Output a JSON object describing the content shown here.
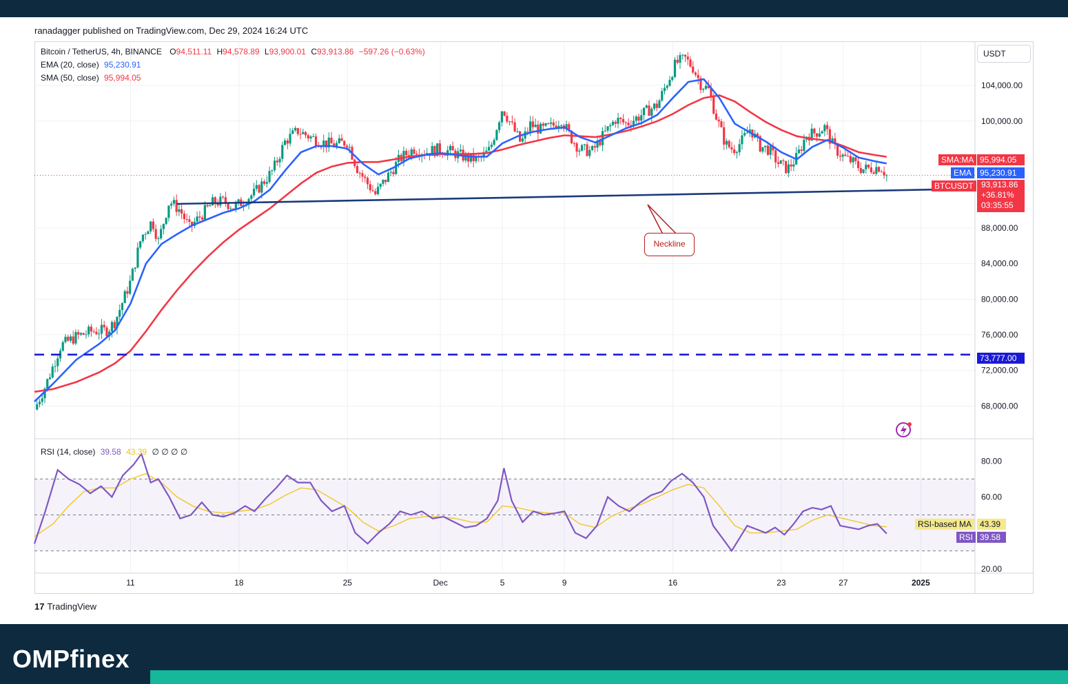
{
  "header": {
    "published": "ranadagger published on TradingView.com, Dec 29, 2024 16:24 UTC",
    "currency_button": "USDT"
  },
  "legend": {
    "symbol": "Bitcoin / TetherUS, 4h, BINANCE",
    "open_label": "O",
    "open": "94,511.11",
    "high_label": "H",
    "high": "94,578.89",
    "low_label": "L",
    "low": "93,900.01",
    "close_label": "C",
    "close": "93,913.86",
    "change": "−597.26 (−0.63%)",
    "ema_label": "EMA (20, close)",
    "ema_value": "95,230.91",
    "sma_label": "SMA (50, close)",
    "sma_value": "95,994.05",
    "rsi_label": "RSI (14, close)",
    "rsi_value": "39.58",
    "rsi_ma_value": "43.39",
    "rsi_extra": "∅ ∅ ∅ ∅"
  },
  "tags": {
    "sma_name": "SMA:MA",
    "sma_value": "95,994.05",
    "ema_name": "EMA",
    "ema_value": "95,230.91",
    "price_name": "BTCUSDT",
    "price_value": "93,913.86",
    "price_change": "+36.81%",
    "countdown": "03:35:55",
    "support_value": "73,777.00",
    "rsi_ma_name": "RSI-based MA",
    "rsi_ma_value": "43.39",
    "rsi_name": "RSI",
    "rsi_value": "39.58"
  },
  "annotation": {
    "neckline": "Neckline"
  },
  "footer": {
    "tv_logo_text": "TradingView",
    "brand_a": "OMP",
    "brand_b": "finex"
  },
  "colors": {
    "ema": "#2962ff",
    "sma": "#f23645",
    "up": "#089981",
    "down": "#f23645",
    "rsi": "#7e57c2",
    "rsi_ma": "#f0c419",
    "support": "#1a1ad6",
    "neckline": "#1a3a7a",
    "footer_bg": "#0d2a3f",
    "footer_accent": "#16b79a"
  },
  "chart_data": {
    "type": "candlestick",
    "symbol": "BTCUSDT",
    "timeframe": "4h",
    "price_axis_ticks": [
      "104,000.00",
      "100,000.00",
      "88,000.00",
      "84,000.00",
      "80,000.00",
      "76,000.00",
      "72,000.00",
      "68,000.00"
    ],
    "price_tick_values": [
      104000,
      100000,
      88000,
      84000,
      80000,
      76000,
      72000,
      68000
    ],
    "ylim": [
      64400,
      108800
    ],
    "x_ticks": [
      "11",
      "18",
      "25",
      "Dec",
      "5",
      "9",
      "16",
      "23",
      "27",
      "2025"
    ],
    "x_tick_days": [
      11,
      18,
      25,
      31,
      35,
      39,
      46,
      53,
      57,
      62
    ],
    "xlim_days": [
      4.8,
      65.5
    ],
    "price_path": [
      [
        4.8,
        67600
      ],
      [
        5.5,
        70200
      ],
      [
        6.5,
        74800
      ],
      [
        7.5,
        75800
      ],
      [
        8.5,
        76400
      ],
      [
        9.5,
        76500
      ],
      [
        10.0,
        77500
      ],
      [
        11.0,
        82000
      ],
      [
        11.7,
        87000
      ],
      [
        12.4,
        88800
      ],
      [
        12.8,
        86500
      ],
      [
        13.5,
        91000
      ],
      [
        14.2,
        90000
      ],
      [
        14.8,
        88000
      ],
      [
        15.6,
        89500
      ],
      [
        16.3,
        90800
      ],
      [
        17.0,
        91000
      ],
      [
        17.7,
        90300
      ],
      [
        18.4,
        91200
      ],
      [
        19.0,
        91900
      ],
      [
        19.6,
        93200
      ],
      [
        20.2,
        94500
      ],
      [
        21.0,
        97800
      ],
      [
        21.8,
        98900
      ],
      [
        22.6,
        98200
      ],
      [
        23.4,
        97600
      ],
      [
        24.2,
        97300
      ],
      [
        25.0,
        97700
      ],
      [
        25.6,
        94800
      ],
      [
        26.2,
        93200
      ],
      [
        26.8,
        91800
      ],
      [
        27.6,
        93800
      ],
      [
        28.4,
        95800
      ],
      [
        29.3,
        96900
      ],
      [
        30.0,
        96500
      ],
      [
        30.8,
        96800
      ],
      [
        31.6,
        96600
      ],
      [
        32.2,
        96200
      ],
      [
        32.8,
        95800
      ],
      [
        33.5,
        95700
      ],
      [
        34.2,
        96800
      ],
      [
        35.0,
        101500
      ],
      [
        35.6,
        99500
      ],
      [
        36.2,
        97500
      ],
      [
        36.8,
        99600
      ],
      [
        37.5,
        99000
      ],
      [
        38.2,
        99400
      ],
      [
        38.8,
        100200
      ],
      [
        39.4,
        98200
      ],
      [
        40.0,
        96800
      ],
      [
        40.8,
        96600
      ],
      [
        41.6,
        98600
      ],
      [
        42.3,
        100200
      ],
      [
        43.0,
        99700
      ],
      [
        43.7,
        100400
      ],
      [
        44.4,
        101200
      ],
      [
        45.0,
        101800
      ],
      [
        45.6,
        104200
      ],
      [
        46.2,
        106500
      ],
      [
        46.8,
        107000
      ],
      [
        47.3,
        106000
      ],
      [
        47.8,
        104200
      ],
      [
        48.3,
        103500
      ],
      [
        48.8,
        100500
      ],
      [
        49.4,
        97400
      ],
      [
        49.9,
        96800
      ],
      [
        50.4,
        97600
      ],
      [
        51.0,
        99200
      ],
      [
        51.6,
        97200
      ],
      [
        52.2,
        96800
      ],
      [
        52.8,
        95300
      ],
      [
        53.4,
        94600
      ],
      [
        54.0,
        95900
      ],
      [
        54.6,
        98400
      ],
      [
        55.2,
        98700
      ],
      [
        55.8,
        99300
      ],
      [
        56.4,
        97000
      ],
      [
        57.0,
        96000
      ],
      [
        57.6,
        95400
      ],
      [
        58.2,
        94600
      ],
      [
        58.8,
        94700
      ],
      [
        59.4,
        94900
      ],
      [
        59.8,
        93900
      ]
    ],
    "ema_path": [
      [
        4.8,
        68500
      ],
      [
        6.0,
        70500
      ],
      [
        7.5,
        73200
      ],
      [
        9.0,
        75000
      ],
      [
        10.0,
        76500
      ],
      [
        11.0,
        79500
      ],
      [
        12.0,
        84000
      ],
      [
        13.0,
        86200
      ],
      [
        14.0,
        87300
      ],
      [
        15.0,
        88300
      ],
      [
        16.0,
        89000
      ],
      [
        17.0,
        89700
      ],
      [
        18.0,
        90200
      ],
      [
        19.0,
        91000
      ],
      [
        20.0,
        92300
      ],
      [
        21.0,
        94500
      ],
      [
        22.0,
        96500
      ],
      [
        23.0,
        97200
      ],
      [
        24.0,
        97200
      ],
      [
        25.0,
        96900
      ],
      [
        26.0,
        95200
      ],
      [
        27.0,
        94000
      ],
      [
        28.0,
        94800
      ],
      [
        29.0,
        95800
      ],
      [
        30.0,
        96200
      ],
      [
        31.0,
        96400
      ],
      [
        32.0,
        96200
      ],
      [
        33.0,
        96000
      ],
      [
        34.0,
        96000
      ],
      [
        35.0,
        97500
      ],
      [
        36.0,
        98300
      ],
      [
        37.0,
        98800
      ],
      [
        38.0,
        99100
      ],
      [
        39.0,
        99300
      ],
      [
        40.0,
        98200
      ],
      [
        41.0,
        97600
      ],
      [
        42.0,
        98400
      ],
      [
        43.0,
        99200
      ],
      [
        44.0,
        99800
      ],
      [
        45.0,
        100700
      ],
      [
        46.0,
        102600
      ],
      [
        47.0,
        104400
      ],
      [
        48.0,
        104700
      ],
      [
        49.0,
        102600
      ],
      [
        50.0,
        99700
      ],
      [
        51.0,
        98700
      ],
      [
        52.0,
        97700
      ],
      [
        53.0,
        96500
      ],
      [
        54.0,
        95700
      ],
      [
        55.0,
        97100
      ],
      [
        56.0,
        97900
      ],
      [
        57.0,
        97000
      ],
      [
        58.0,
        95900
      ],
      [
        59.0,
        95500
      ],
      [
        59.8,
        95230
      ]
    ],
    "sma_path": [
      [
        4.8,
        69600
      ],
      [
        6.0,
        69900
      ],
      [
        7.5,
        70700
      ],
      [
        9.0,
        71800
      ],
      [
        10.0,
        72800
      ],
      [
        11.0,
        74200
      ],
      [
        12.0,
        76400
      ],
      [
        13.0,
        78800
      ],
      [
        14.0,
        81000
      ],
      [
        15.0,
        83000
      ],
      [
        16.0,
        84800
      ],
      [
        17.0,
        86400
      ],
      [
        18.0,
        87800
      ],
      [
        19.0,
        89000
      ],
      [
        20.0,
        90200
      ],
      [
        21.0,
        91600
      ],
      [
        22.0,
        93000
      ],
      [
        23.0,
        94200
      ],
      [
        24.0,
        94900
      ],
      [
        25.0,
        95300
      ],
      [
        26.0,
        95400
      ],
      [
        27.0,
        95400
      ],
      [
        28.0,
        95700
      ],
      [
        29.0,
        96000
      ],
      [
        30.0,
        96200
      ],
      [
        31.0,
        96300
      ],
      [
        32.0,
        96300
      ],
      [
        33.0,
        96300
      ],
      [
        34.0,
        96400
      ],
      [
        35.0,
        96800
      ],
      [
        36.0,
        97300
      ],
      [
        37.0,
        97700
      ],
      [
        38.0,
        98100
      ],
      [
        39.0,
        98400
      ],
      [
        40.0,
        98300
      ],
      [
        41.0,
        98200
      ],
      [
        42.0,
        98500
      ],
      [
        43.0,
        98900
      ],
      [
        44.0,
        99400
      ],
      [
        45.0,
        100000
      ],
      [
        46.0,
        100800
      ],
      [
        47.0,
        101800
      ],
      [
        48.0,
        102600
      ],
      [
        49.0,
        102900
      ],
      [
        50.0,
        102200
      ],
      [
        51.0,
        101000
      ],
      [
        52.0,
        99900
      ],
      [
        53.0,
        99000
      ],
      [
        54.0,
        98300
      ],
      [
        55.0,
        98000
      ],
      [
        56.0,
        97800
      ],
      [
        57.0,
        97200
      ],
      [
        58.0,
        96500
      ],
      [
        59.0,
        96200
      ],
      [
        59.8,
        95994
      ]
    ],
    "support_level": 73777,
    "neckline": [
      [
        14.0,
        90700
      ],
      [
        65.5,
        92400
      ]
    ],
    "rsi_axis_ticks": [
      "80.00",
      "60.00",
      "20.00"
    ],
    "rsi_tick_values": [
      80,
      60,
      20
    ],
    "rsi_ylim": [
      18,
      92
    ],
    "rsi_bands": [
      70,
      50,
      30
    ],
    "rsi_path": [
      [
        4.8,
        34
      ],
      [
        5.5,
        52
      ],
      [
        6.3,
        75
      ],
      [
        7.0,
        70
      ],
      [
        7.7,
        67
      ],
      [
        8.4,
        62
      ],
      [
        9.1,
        66
      ],
      [
        9.8,
        60
      ],
      [
        10.5,
        72
      ],
      [
        11.2,
        78
      ],
      [
        11.7,
        84
      ],
      [
        12.3,
        68
      ],
      [
        12.8,
        70
      ],
      [
        13.5,
        60
      ],
      [
        14.2,
        48
      ],
      [
        14.9,
        50
      ],
      [
        15.6,
        57
      ],
      [
        16.3,
        50
      ],
      [
        17.0,
        49
      ],
      [
        17.7,
        51
      ],
      [
        18.4,
        55
      ],
      [
        19.0,
        52
      ],
      [
        19.7,
        59
      ],
      [
        20.4,
        65
      ],
      [
        21.1,
        72
      ],
      [
        21.8,
        68
      ],
      [
        22.6,
        68
      ],
      [
        23.3,
        58
      ],
      [
        24.0,
        52
      ],
      [
        24.8,
        55
      ],
      [
        25.5,
        40
      ],
      [
        26.3,
        34
      ],
      [
        27.0,
        40
      ],
      [
        27.7,
        45
      ],
      [
        28.4,
        52
      ],
      [
        29.1,
        50
      ],
      [
        29.8,
        52
      ],
      [
        30.5,
        48
      ],
      [
        31.2,
        49
      ],
      [
        31.9,
        46
      ],
      [
        32.6,
        43
      ],
      [
        33.3,
        44
      ],
      [
        34.0,
        48
      ],
      [
        34.7,
        58
      ],
      [
        35.1,
        76
      ],
      [
        35.6,
        58
      ],
      [
        36.3,
        46
      ],
      [
        37.0,
        52
      ],
      [
        37.7,
        50
      ],
      [
        38.4,
        51
      ],
      [
        39.0,
        52
      ],
      [
        39.7,
        40
      ],
      [
        40.4,
        37
      ],
      [
        41.1,
        44
      ],
      [
        41.8,
        60
      ],
      [
        42.5,
        55
      ],
      [
        43.2,
        52
      ],
      [
        43.9,
        57
      ],
      [
        44.6,
        61
      ],
      [
        45.3,
        63
      ],
      [
        45.9,
        69
      ],
      [
        46.6,
        73
      ],
      [
        47.3,
        68
      ],
      [
        48.0,
        60
      ],
      [
        48.6,
        44
      ],
      [
        49.2,
        37
      ],
      [
        49.8,
        30
      ],
      [
        50.3,
        37
      ],
      [
        50.8,
        44
      ],
      [
        51.4,
        42
      ],
      [
        52.0,
        40
      ],
      [
        52.6,
        43
      ],
      [
        53.2,
        39
      ],
      [
        53.8,
        45
      ],
      [
        54.4,
        52
      ],
      [
        55.0,
        54
      ],
      [
        55.6,
        53
      ],
      [
        56.2,
        55
      ],
      [
        56.8,
        44
      ],
      [
        57.4,
        43
      ],
      [
        58.0,
        42
      ],
      [
        58.6,
        44
      ],
      [
        59.2,
        45
      ],
      [
        59.8,
        39.58
      ]
    ],
    "rsi_ma_path": [
      [
        4.8,
        38
      ],
      [
        6.0,
        45
      ],
      [
        7.0,
        55
      ],
      [
        8.0,
        63
      ],
      [
        9.0,
        65
      ],
      [
        10.0,
        65
      ],
      [
        11.0,
        70
      ],
      [
        12.0,
        73
      ],
      [
        13.0,
        68
      ],
      [
        14.0,
        60
      ],
      [
        15.0,
        55
      ],
      [
        16.0,
        52
      ],
      [
        17.0,
        51
      ],
      [
        18.0,
        52
      ],
      [
        19.0,
        53
      ],
      [
        20.0,
        56
      ],
      [
        21.0,
        61
      ],
      [
        22.0,
        65
      ],
      [
        23.0,
        64
      ],
      [
        24.0,
        59
      ],
      [
        25.0,
        54
      ],
      [
        26.0,
        46
      ],
      [
        27.0,
        41
      ],
      [
        28.0,
        44
      ],
      [
        29.0,
        48
      ],
      [
        30.0,
        49
      ],
      [
        31.0,
        49
      ],
      [
        32.0,
        48
      ],
      [
        33.0,
        46
      ],
      [
        34.0,
        46
      ],
      [
        35.0,
        55
      ],
      [
        36.0,
        54
      ],
      [
        37.0,
        52
      ],
      [
        38.0,
        51
      ],
      [
        39.0,
        51
      ],
      [
        40.0,
        45
      ],
      [
        41.0,
        43
      ],
      [
        42.0,
        49
      ],
      [
        43.0,
        53
      ],
      [
        44.0,
        56
      ],
      [
        45.0,
        60
      ],
      [
        46.0,
        64
      ],
      [
        47.0,
        67
      ],
      [
        48.0,
        65
      ],
      [
        49.0,
        55
      ],
      [
        50.0,
        44
      ],
      [
        51.0,
        40
      ],
      [
        52.0,
        40
      ],
      [
        53.0,
        41
      ],
      [
        54.0,
        42
      ],
      [
        55.0,
        47
      ],
      [
        56.0,
        50
      ],
      [
        57.0,
        48
      ],
      [
        58.0,
        46
      ],
      [
        59.0,
        44
      ],
      [
        59.8,
        43.39
      ]
    ]
  }
}
